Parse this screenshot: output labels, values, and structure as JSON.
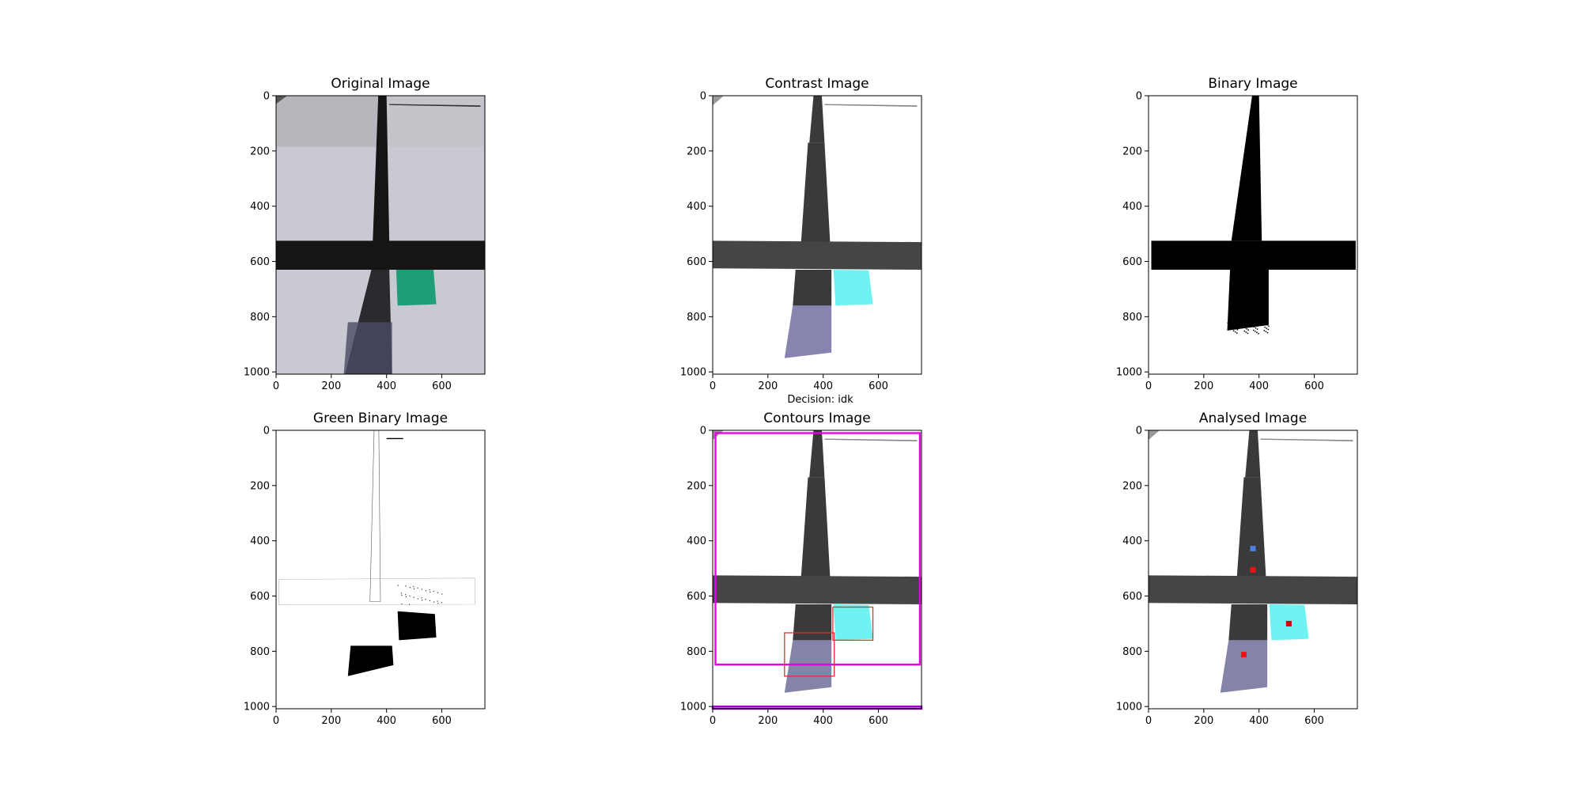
{
  "figure": {
    "caption": "Decision: idk"
  },
  "chart_data": [
    {
      "type": "image",
      "id": "original",
      "title": "Original Image",
      "xlim": [
        0,
        756
      ],
      "ylim": [
        1008,
        0
      ],
      "xticks": [
        0,
        200,
        400,
        600
      ],
      "yticks": [
        0,
        200,
        400,
        600,
        800,
        1000
      ],
      "colors": {
        "background": "#c9c9d1",
        "bar": "#151515",
        "marker": "#1f9e78"
      }
    },
    {
      "type": "image",
      "id": "contrast",
      "title": "Contrast Image",
      "xlim": [
        0,
        756
      ],
      "ylim": [
        1008,
        0
      ],
      "xticks": [
        0,
        200,
        400,
        600
      ],
      "yticks": [
        0,
        200,
        400,
        600,
        800,
        1000
      ],
      "colors": {
        "background": "#ffffff",
        "bar": "#3a3a3a",
        "marker": "#6ff2f2",
        "bottom": "#7a78a6"
      }
    },
    {
      "type": "image",
      "id": "binary",
      "title": "Binary Image",
      "xlim": [
        0,
        756
      ],
      "ylim": [
        1008,
        0
      ],
      "xticks": [
        0,
        200,
        400,
        600
      ],
      "yticks": [
        0,
        200,
        400,
        600,
        800,
        1000
      ],
      "colors": {
        "background": "#ffffff",
        "bar": "#000000"
      }
    },
    {
      "type": "image",
      "id": "green-binary",
      "title": "Green Binary Image",
      "xlim": [
        0,
        756
      ],
      "ylim": [
        1008,
        0
      ],
      "xticks": [
        0,
        200,
        400,
        600
      ],
      "yticks": [
        0,
        200,
        400,
        600,
        800,
        1000
      ],
      "colors": {
        "background": "#ffffff",
        "bar": "#000000"
      }
    },
    {
      "type": "image",
      "id": "contours",
      "title": "Contours Image",
      "xlim": [
        0,
        756
      ],
      "ylim": [
        1008,
        0
      ],
      "xticks": [
        0,
        200,
        400,
        600
      ],
      "yticks": [
        0,
        200,
        400,
        600,
        800,
        1000
      ],
      "colors": {
        "background": "#ffffff",
        "bar": "#3a3a3a",
        "marker": "#6ff2f2",
        "frame": "#e600e6",
        "box": "#e03030"
      },
      "boxes": [
        {
          "x0": 10,
          "y0": 10,
          "x1": 750,
          "y1": 848,
          "color": "#e600e6"
        },
        {
          "x0": 0,
          "y0": 1000,
          "x1": 756,
          "y1": 1008,
          "color": "#9b00c8"
        },
        {
          "x0": 435,
          "y0": 640,
          "x1": 580,
          "y1": 760,
          "color": "#e03030"
        },
        {
          "x0": 260,
          "y0": 733,
          "x1": 440,
          "y1": 890,
          "color": "#e03030"
        }
      ]
    },
    {
      "type": "image",
      "id": "analysed",
      "title": "Analysed Image",
      "xlim": [
        0,
        756
      ],
      "ylim": [
        1008,
        0
      ],
      "xticks": [
        0,
        200,
        400,
        600
      ],
      "yticks": [
        0,
        200,
        400,
        600,
        800,
        1000
      ],
      "colors": {
        "background": "#ffffff",
        "bar": "#3a3a3a",
        "marker": "#6ff2f2"
      },
      "points": [
        {
          "x": 378,
          "y": 428,
          "color": "#4e7fe0"
        },
        {
          "x": 378,
          "y": 505,
          "color": "#ee1111"
        },
        {
          "x": 508,
          "y": 700,
          "color": "#cc0000"
        },
        {
          "x": 345,
          "y": 812,
          "color": "#ee1111"
        }
      ]
    }
  ]
}
